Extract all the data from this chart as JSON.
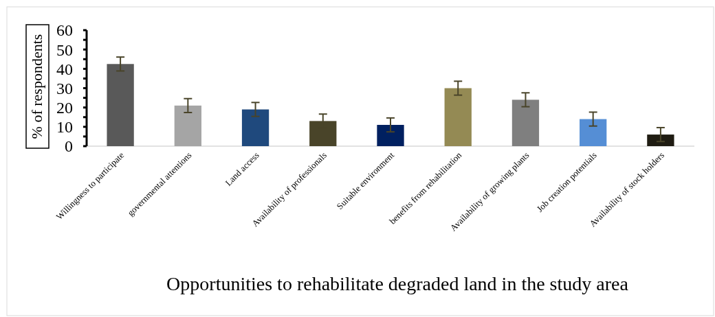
{
  "chart_data": {
    "type": "bar",
    "xlabel": "Opportunities to rehabilitate degraded land in the study area",
    "ylabel": "% of respondents",
    "categories": [
      "Willingness to participate",
      "governmental attentions",
      "Land access",
      "Availability of  professionals",
      "Suitable environment",
      "benefits from rehabilitation",
      "Availability of  growing plants",
      "Job creation  potentials",
      "Availability of  stock holders"
    ],
    "values": [
      42.5,
      21,
      19,
      13,
      11,
      30,
      24,
      14,
      6
    ],
    "errors": [
      3.6,
      3.6,
      3.6,
      3.6,
      3.6,
      3.6,
      3.6,
      3.6,
      3.6
    ],
    "colors": [
      "#595959",
      "#a5a5a5",
      "#1f497d",
      "#494429",
      "#002060",
      "#948a54",
      "#7f7f7f",
      "#558ed5",
      "#1f1c12"
    ],
    "ylim": [
      0,
      60
    ],
    "yticks": [
      0,
      {
        "value": 5,
        "label": null
      },
      10,
      {
        "value": 15,
        "label": null
      },
      20,
      {
        "value": 25,
        "label": null
      },
      30,
      {
        "value": 35,
        "label": null
      },
      40,
      {
        "value": 45,
        "label": null
      },
      50,
      {
        "value": 55,
        "label": null
      },
      60
    ],
    "grid": false
  }
}
